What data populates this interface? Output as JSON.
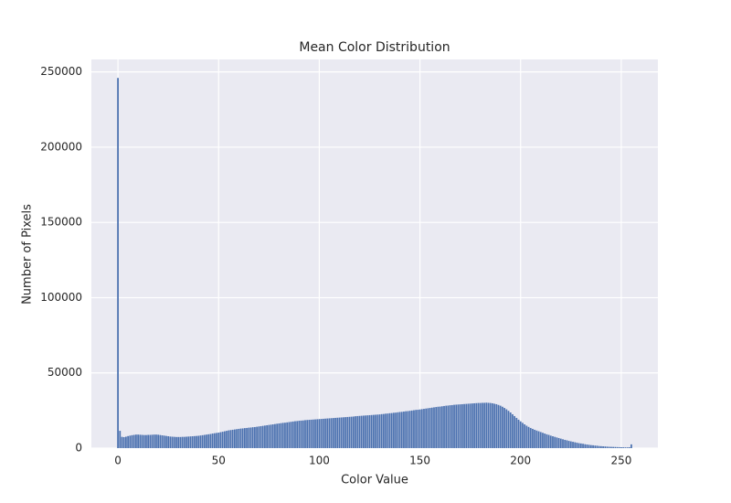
{
  "chart_data": {
    "type": "bar",
    "title": "Mean Color Distribution",
    "xlabel": "Color Value",
    "ylabel": "Number of Pixels",
    "x": [
      0,
      1,
      2,
      3,
      4,
      5,
      6,
      7,
      8,
      9,
      10,
      11,
      12,
      13,
      14,
      15,
      16,
      17,
      18,
      19,
      20,
      21,
      22,
      23,
      24,
      25,
      26,
      27,
      28,
      29,
      30,
      31,
      32,
      33,
      34,
      35,
      36,
      37,
      38,
      39,
      40,
      41,
      42,
      43,
      44,
      45,
      46,
      47,
      48,
      49,
      50,
      51,
      52,
      53,
      54,
      55,
      56,
      57,
      58,
      59,
      60,
      61,
      62,
      63,
      64,
      65,
      66,
      67,
      68,
      69,
      70,
      71,
      72,
      73,
      74,
      75,
      76,
      77,
      78,
      79,
      80,
      81,
      82,
      83,
      84,
      85,
      86,
      87,
      88,
      89,
      90,
      91,
      92,
      93,
      94,
      95,
      96,
      97,
      98,
      99,
      100,
      101,
      102,
      103,
      104,
      105,
      106,
      107,
      108,
      109,
      110,
      111,
      112,
      113,
      114,
      115,
      116,
      117,
      118,
      119,
      120,
      121,
      122,
      123,
      124,
      125,
      126,
      127,
      128,
      129,
      130,
      131,
      132,
      133,
      134,
      135,
      136,
      137,
      138,
      139,
      140,
      141,
      142,
      143,
      144,
      145,
      146,
      147,
      148,
      149,
      150,
      151,
      152,
      153,
      154,
      155,
      156,
      157,
      158,
      159,
      160,
      161,
      162,
      163,
      164,
      165,
      166,
      167,
      168,
      169,
      170,
      171,
      172,
      173,
      174,
      175,
      176,
      177,
      178,
      179,
      180,
      181,
      182,
      183,
      184,
      185,
      186,
      187,
      188,
      189,
      190,
      191,
      192,
      193,
      194,
      195,
      196,
      197,
      198,
      199,
      200,
      201,
      202,
      203,
      204,
      205,
      206,
      207,
      208,
      209,
      210,
      211,
      212,
      213,
      214,
      215,
      216,
      217,
      218,
      219,
      220,
      221,
      222,
      223,
      224,
      225,
      226,
      227,
      228,
      229,
      230,
      231,
      232,
      233,
      234,
      235,
      236,
      237,
      238,
      239,
      240,
      241,
      242,
      243,
      244,
      245,
      246,
      247,
      248,
      249,
      250,
      251,
      252,
      253,
      254,
      255
    ],
    "values": [
      246000,
      11500,
      7500,
      7300,
      7600,
      8000,
      8300,
      8600,
      8800,
      9000,
      9000,
      8900,
      8800,
      8700,
      8700,
      8800,
      8800,
      8900,
      9000,
      9000,
      8900,
      8700,
      8500,
      8300,
      8100,
      7900,
      7700,
      7600,
      7500,
      7400,
      7400,
      7400,
      7500,
      7500,
      7600,
      7700,
      7800,
      7900,
      8000,
      8100,
      8200,
      8400,
      8600,
      8800,
      9000,
      9200,
      9400,
      9700,
      9900,
      10100,
      10300,
      10600,
      10900,
      11200,
      11500,
      11800,
      12000,
      12200,
      12400,
      12600,
      12800,
      13000,
      13100,
      13300,
      13400,
      13600,
      13700,
      13900,
      14000,
      14200,
      14400,
      14600,
      14800,
      15000,
      15200,
      15400,
      15600,
      15800,
      16000,
      16200,
      16400,
      16600,
      16800,
      16900,
      17100,
      17300,
      17500,
      17700,
      17900,
      18000,
      18200,
      18300,
      18400,
      18600,
      18700,
      18800,
      18900,
      19000,
      19100,
      19200,
      19300,
      19400,
      19500,
      19600,
      19700,
      19800,
      19900,
      20000,
      20100,
      20200,
      20300,
      20400,
      20500,
      20600,
      20700,
      20800,
      20900,
      21000,
      21200,
      21300,
      21400,
      21500,
      21600,
      21700,
      21800,
      21900,
      22000,
      22100,
      22200,
      22300,
      22400,
      22600,
      22700,
      22900,
      23000,
      23200,
      23300,
      23500,
      23600,
      23800,
      24000,
      24100,
      24300,
      24500,
      24600,
      24800,
      25000,
      25200,
      25400,
      25500,
      25700,
      25900,
      26100,
      26300,
      26500,
      26700,
      26900,
      27100,
      27300,
      27500,
      27600,
      27800,
      28000,
      28200,
      28300,
      28500,
      28600,
      28800,
      28900,
      29000,
      29100,
      29200,
      29300,
      29400,
      29500,
      29600,
      29700,
      29800,
      29900,
      30000,
      30000,
      30100,
      30100,
      30200,
      30100,
      30000,
      29800,
      29500,
      29200,
      28700,
      28200,
      27500,
      26700,
      25800,
      24800,
      23700,
      22500,
      21300,
      20100,
      18900,
      17800,
      16800,
      15800,
      14900,
      14100,
      13400,
      12800,
      12200,
      11700,
      11200,
      10700,
      10200,
      9700,
      9200,
      8800,
      8300,
      7900,
      7500,
      7100,
      6700,
      6300,
      5900,
      5500,
      5200,
      4800,
      4500,
      4200,
      3900,
      3600,
      3300,
      3100,
      2900,
      2600,
      2400,
      2200,
      2000,
      1900,
      1700,
      1600,
      1400,
      1300,
      1200,
      1100,
      1000,
      900,
      850,
      800,
      750,
      700,
      650,
      600,
      550,
      500,
      500,
      600,
      2500
    ],
    "color": "#4c72b0",
    "xlim": [
      -13.2,
      268.2
    ],
    "ylim": [
      0,
      258300
    ],
    "xticks": [
      0,
      50,
      100,
      150,
      200,
      250
    ],
    "yticks": [
      0,
      50000,
      100000,
      150000,
      200000,
      250000
    ],
    "grid": true
  }
}
